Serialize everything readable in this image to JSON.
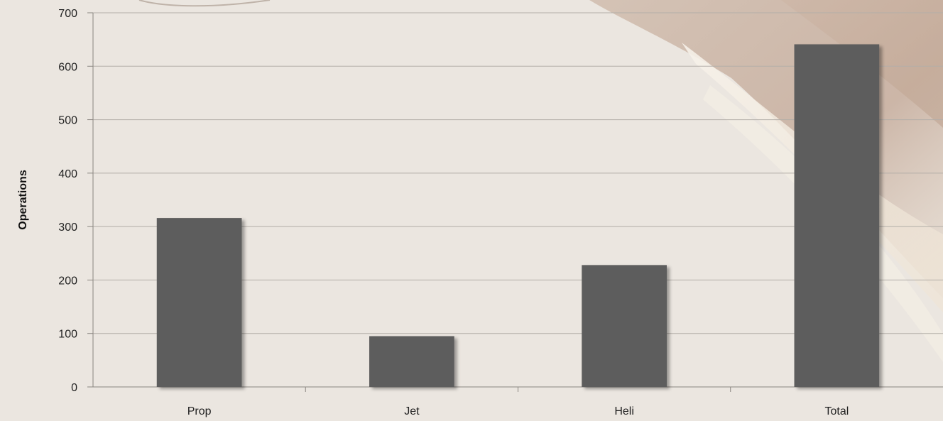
{
  "chart_data": {
    "type": "bar",
    "title": "",
    "xlabel": "",
    "ylabel": "Operations",
    "categories": [
      "Prop",
      "Jet",
      "Heli",
      "Total"
    ],
    "values": [
      316,
      95,
      228,
      641
    ],
    "ylim": [
      0,
      700
    ],
    "yticks": [
      0,
      100,
      200,
      300,
      400,
      500,
      600,
      700
    ],
    "grid": true,
    "legend": "none",
    "bar_color": "#5d5d5d"
  },
  "colors": {
    "background": "#ebe6e0",
    "gridline": "#b3aea8",
    "axis": "#8a8580",
    "swoosh_dark": "#c8b3a4",
    "swoosh_light": "#f3ede3"
  }
}
